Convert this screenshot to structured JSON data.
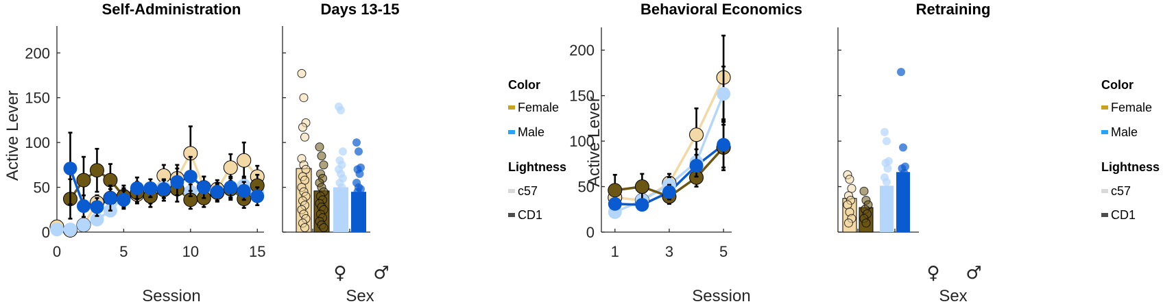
{
  "colors": {
    "female_c57": "#f2d9a5",
    "female_cd1": "#6b5614",
    "male_c57": "#b5d6fb",
    "male_cd1": "#0b5bd0",
    "legend_female": "#c9a21e",
    "legend_male": "#22a4ff",
    "legend_c57": "#d9d9d9",
    "legend_cd1": "#4d4d4d",
    "axis": "#262626"
  },
  "legend_left": {
    "color_title": "Color",
    "female": "Female",
    "male": "Male",
    "lightness_title": "Lightness",
    "c57": "c57",
    "cd1": "CD1"
  },
  "legend_right": {
    "color_title": "Color",
    "female": "Female",
    "male": "Male",
    "lightness_title": "Lightness",
    "c57": "c57",
    "cd1": "CD1"
  },
  "chart_data": [
    {
      "type": "line",
      "title": "Self-Administration",
      "xlabel": "Session",
      "ylabel": "Active Lever",
      "xlim": [
        0,
        15.5
      ],
      "ylim": [
        0,
        230
      ],
      "xticks": [
        0,
        5,
        10,
        15
      ],
      "yticks": [
        0,
        50,
        100,
        150,
        200
      ],
      "series": [
        {
          "key": "female_c57",
          "x": [
            0,
            1,
            2,
            3,
            4,
            5,
            6,
            7,
            8,
            9,
            10,
            11,
            12,
            13,
            14,
            15
          ],
          "y": [
            6,
            2,
            8,
            33,
            38,
            40,
            42,
            40,
            63,
            60,
            88,
            50,
            48,
            72,
            80,
            62
          ],
          "err": [
            3,
            2,
            4,
            8,
            10,
            9,
            8,
            8,
            12,
            15,
            30,
            12,
            10,
            15,
            20,
            12
          ]
        },
        {
          "key": "male_c57",
          "x": [
            0,
            1,
            2,
            3,
            4,
            5,
            6,
            7,
            8,
            9,
            10,
            11,
            12,
            13,
            14,
            15
          ],
          "y": [
            3,
            3,
            8,
            14,
            24,
            40,
            45,
            45,
            50,
            52,
            45,
            48,
            45,
            47,
            52,
            45
          ],
          "err": [
            2,
            2,
            3,
            5,
            6,
            8,
            8,
            8,
            8,
            10,
            8,
            8,
            7,
            8,
            10,
            8
          ]
        },
        {
          "key": "female_cd1",
          "x": [
            1,
            2,
            3,
            4,
            5,
            6,
            7,
            8,
            9,
            10,
            11,
            12,
            13,
            14,
            15
          ],
          "y": [
            37,
            58,
            69,
            58,
            40,
            44,
            40,
            47,
            48,
            36,
            38,
            44,
            48,
            37,
            52
          ],
          "err": [
            22,
            26,
            24,
            18,
            12,
            12,
            12,
            12,
            14,
            10,
            10,
            10,
            12,
            10,
            12
          ]
        },
        {
          "key": "male_cd1",
          "x": [
            1,
            2,
            3,
            4,
            5,
            6,
            7,
            8,
            9,
            10,
            11,
            12,
            13,
            14,
            15
          ],
          "y": [
            71,
            29,
            28,
            38,
            36,
            49,
            49,
            48,
            56,
            62,
            50,
            45,
            50,
            46,
            40
          ],
          "err": [
            40,
            12,
            10,
            14,
            10,
            12,
            10,
            10,
            15,
            22,
            12,
            10,
            12,
            10,
            10
          ]
        }
      ]
    },
    {
      "type": "bar",
      "title": "Days 13-15",
      "xlabel": "Sex",
      "categories": [
        "♀",
        "♂"
      ],
      "ylim": [
        0,
        230
      ],
      "bars": [
        {
          "key": "female_c57",
          "group": 0,
          "value": 71,
          "points": [
            177,
            150,
            122,
            117,
            106,
            82,
            75,
            70,
            62,
            58,
            50,
            45,
            40,
            35,
            30,
            25,
            20,
            15,
            10,
            5
          ]
        },
        {
          "key": "female_cd1",
          "group": 0,
          "value": 46,
          "points": [
            95,
            85,
            75,
            65,
            60,
            55,
            50,
            45,
            40,
            36,
            32,
            28,
            25,
            20,
            16,
            12,
            8,
            5
          ]
        },
        {
          "key": "male_c57",
          "group": 1,
          "value": 50,
          "points": [
            140,
            136,
            90,
            80,
            75,
            70,
            65,
            60,
            55,
            50,
            45,
            40,
            35,
            30,
            25
          ]
        },
        {
          "key": "male_cd1",
          "group": 1,
          "value": 45,
          "points": [
            100,
            90,
            72,
            70,
            65,
            55,
            50,
            48,
            45,
            40
          ]
        }
      ]
    },
    {
      "type": "line",
      "title": "Behavioral Economics",
      "xlabel": "Session",
      "ylabel": "Active Lever",
      "xlim": [
        0.5,
        5.3
      ],
      "ylim": [
        0,
        225
      ],
      "xticks": [
        1,
        3,
        5
      ],
      "yticks": [
        0,
        50,
        100,
        150,
        200
      ],
      "series": [
        {
          "key": "female_c57",
          "x": [
            1,
            2,
            3,
            4,
            5
          ],
          "y": [
            38,
            35,
            54,
            107,
            170
          ],
          "err": [
            6,
            6,
            10,
            29,
            46
          ]
        },
        {
          "key": "male_c57",
          "x": [
            1,
            2,
            3,
            4,
            5
          ],
          "y": [
            22,
            35,
            52,
            77,
            152
          ],
          "err": [
            5,
            6,
            8,
            14,
            30
          ]
        },
        {
          "key": "female_cd1",
          "x": [
            1,
            2,
            3,
            4,
            5
          ],
          "y": [
            46,
            50,
            39,
            60,
            93
          ],
          "err": [
            17,
            14,
            8,
            10,
            25
          ]
        },
        {
          "key": "male_cd1",
          "x": [
            1,
            2,
            3,
            4,
            5
          ],
          "y": [
            31,
            30,
            44,
            73,
            96
          ],
          "err": [
            6,
            6,
            8,
            12,
            25
          ]
        }
      ]
    },
    {
      "type": "bar",
      "title": "Retraining",
      "xlabel": "Sex",
      "categories": [
        "♀",
        "♂"
      ],
      "ylim": [
        0,
        225
      ],
      "bars": [
        {
          "key": "female_c57",
          "group": 0,
          "value": 37,
          "points": [
            63,
            58,
            48,
            40,
            35,
            30,
            22,
            15,
            10
          ]
        },
        {
          "key": "female_cd1",
          "group": 0,
          "value": 27,
          "points": [
            45,
            35,
            30,
            25,
            20,
            15,
            10
          ]
        },
        {
          "key": "male_c57",
          "group": 1,
          "value": 51,
          "points": [
            110,
            100,
            78,
            76,
            70,
            60,
            55
          ]
        },
        {
          "key": "male_cd1",
          "group": 1,
          "value": 66,
          "points": [
            176,
            93,
            72,
            70,
            65
          ]
        }
      ]
    }
  ]
}
